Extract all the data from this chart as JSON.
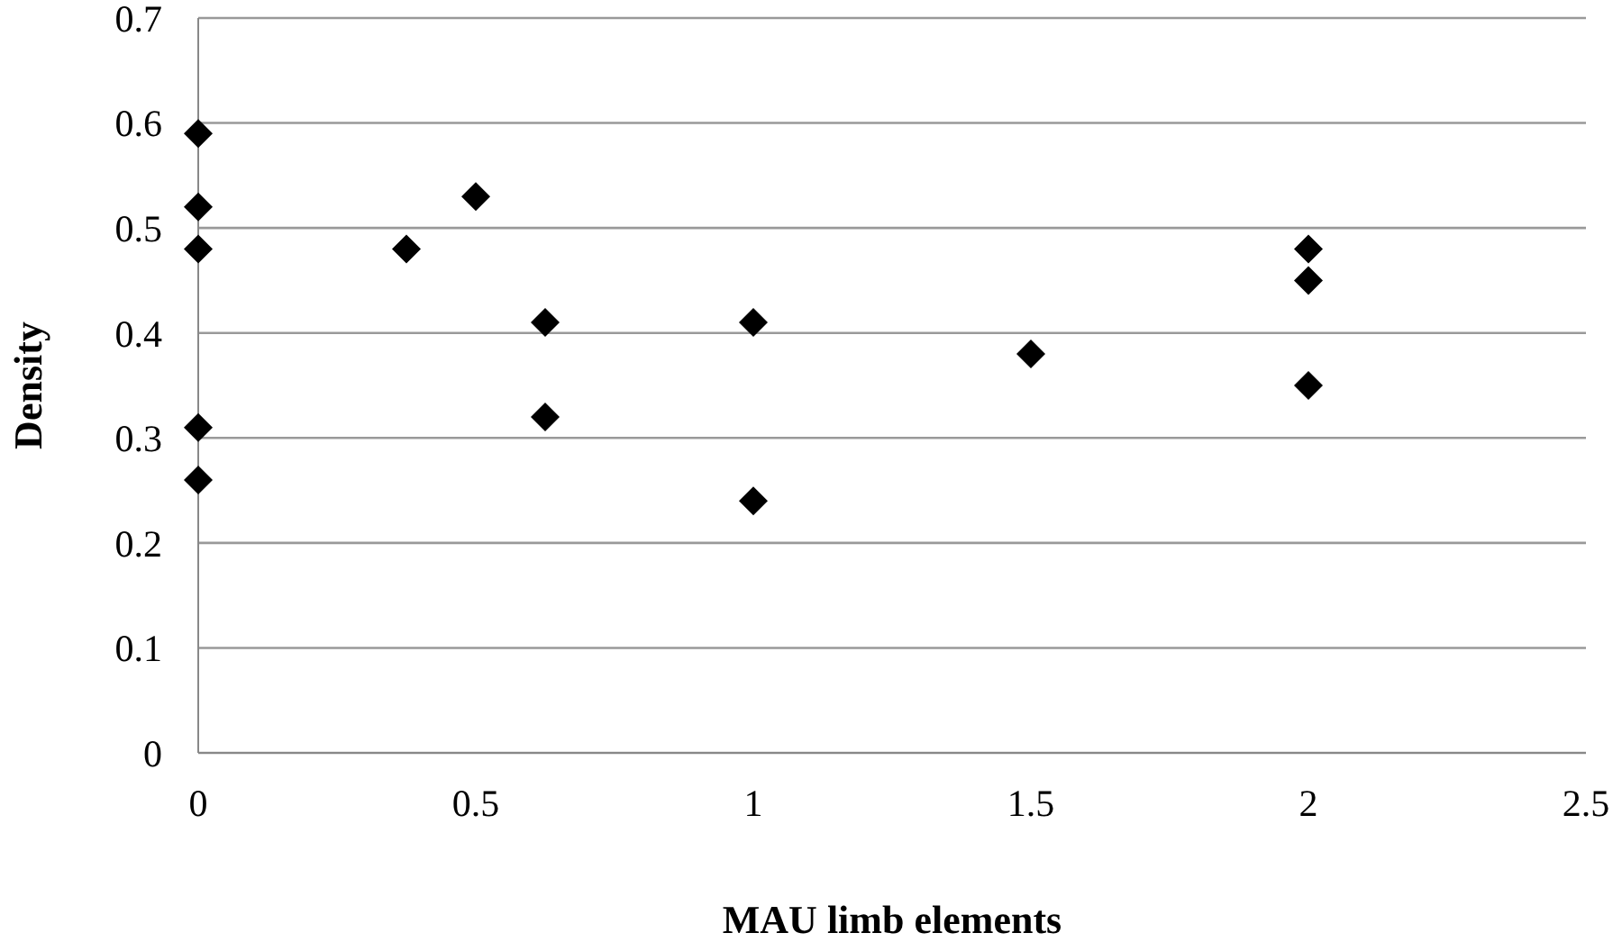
{
  "chart_data": {
    "type": "scatter",
    "xlabel": "MAU limb elements",
    "ylabel": "Density",
    "x": [
      0,
      0,
      0,
      0,
      0,
      0.375,
      0.5,
      0.625,
      0.625,
      1,
      1,
      1.5,
      2,
      2,
      2
    ],
    "values": [
      0.59,
      0.52,
      0.48,
      0.31,
      0.26,
      0.48,
      0.53,
      0.41,
      0.32,
      0.41,
      0.24,
      0.38,
      0.48,
      0.45,
      0.35
    ],
    "color": "#000000",
    "marker": "diamond",
    "grid": "y",
    "xlim": [
      0,
      2.5
    ],
    "xticks": [
      0,
      0.5,
      1,
      1.5,
      2,
      2.5
    ],
    "ylim": [
      0,
      0.7
    ],
    "yticks": [
      0,
      0.1,
      0.2,
      0.3,
      0.4,
      0.5,
      0.6,
      0.7
    ]
  }
}
